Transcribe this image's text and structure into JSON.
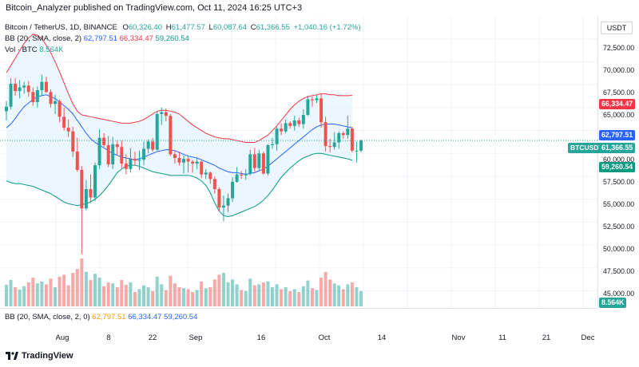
{
  "header": {
    "publisher_line": "Bitcoin_Analyzer published on TradingView.com, Oct 11, 2024 16:25 UTC+3"
  },
  "legend": {
    "symbol": "Bitcoin / TetherUS, 1D, BINANCE",
    "o_label": "O",
    "o_value": "60,326.40",
    "h_label": "H",
    "h_value": "61,477.57",
    "l_label": "L",
    "l_value": "60,087.64",
    "c_label": "C",
    "c_value": "61,366.55",
    "change": "+1,040.16 (+1.72%)",
    "bb_label": "BB (20, SMA, close, 2)",
    "bb_basis": "62,797.51",
    "bb_upper": "66,334.47",
    "bb_lower": "59,260.54",
    "vol_label": "Vol · BTC",
    "vol_value": "8.564K",
    "bottom_bb_label": "BB (20, SMA, close, 2, 0)",
    "bottom_bb_basis": "62,797.51",
    "bottom_bb_upper": "66,334.47",
    "bottom_bb_lower": "59,260.54"
  },
  "price_axis": {
    "currency": "USDT",
    "ticks": [
      "72,500.00",
      "70,000.00",
      "67,500.00",
      "65,000.00",
      "60,000.00",
      "57,500.00",
      "55,000.00",
      "52,500.00",
      "50,000.00",
      "47,500.00",
      "45,000.00"
    ],
    "tags": {
      "upper": "66,334.47",
      "basis": "62,797.51",
      "symbol": "BTCUSDT",
      "last": "61,366.55",
      "lower": "59,260.54",
      "volume": "8.564K"
    }
  },
  "time_axis": {
    "labels": [
      "Aug",
      "8",
      "22",
      "Sep",
      "16",
      "Oct",
      "14",
      "Nov",
      "11",
      "21",
      "Dec"
    ]
  },
  "footer": {
    "brand": "TradingView"
  },
  "colors": {
    "up": "#26a69a",
    "down": "#ef5350",
    "basis": "#2962ff",
    "upper": "#f23645",
    "lower": "#089981",
    "band_fill": "#e3f2fd"
  },
  "chart_data": {
    "type": "candlestick",
    "ylim": [
      44000,
      75000
    ],
    "candles": [
      {
        "o": 64600,
        "h": 65700,
        "l": 63600,
        "c": 65100
      },
      {
        "o": 65100,
        "h": 68200,
        "l": 64800,
        "c": 67600
      },
      {
        "o": 67600,
        "h": 68200,
        "l": 66300,
        "c": 66800
      },
      {
        "o": 66800,
        "h": 68000,
        "l": 66000,
        "c": 67200
      },
      {
        "o": 67200,
        "h": 67800,
        "l": 66500,
        "c": 67400
      },
      {
        "o": 67400,
        "h": 67900,
        "l": 66200,
        "c": 66700
      },
      {
        "o": 66700,
        "h": 67200,
        "l": 65200,
        "c": 65600
      },
      {
        "o": 65600,
        "h": 67300,
        "l": 65000,
        "c": 66900
      },
      {
        "o": 66900,
        "h": 68600,
        "l": 66300,
        "c": 67800
      },
      {
        "o": 67800,
        "h": 68400,
        "l": 66600,
        "c": 66700
      },
      {
        "o": 66700,
        "h": 67000,
        "l": 65000,
        "c": 65400
      },
      {
        "o": 65400,
        "h": 66400,
        "l": 64300,
        "c": 65700
      },
      {
        "o": 65700,
        "h": 65900,
        "l": 63400,
        "c": 64000
      },
      {
        "o": 64000,
        "h": 65000,
        "l": 62500,
        "c": 62800
      },
      {
        "o": 62800,
        "h": 63700,
        "l": 61800,
        "c": 62400
      },
      {
        "o": 62400,
        "h": 62900,
        "l": 59600,
        "c": 60200
      },
      {
        "o": 60200,
        "h": 61700,
        "l": 58000,
        "c": 58200
      },
      {
        "o": 58200,
        "h": 58600,
        "l": 49000,
        "c": 54000
      },
      {
        "o": 54000,
        "h": 57100,
        "l": 53800,
        "c": 56100
      },
      {
        "o": 56100,
        "h": 57700,
        "l": 54600,
        "c": 55200
      },
      {
        "o": 55200,
        "h": 59000,
        "l": 54800,
        "c": 58700
      },
      {
        "o": 58700,
        "h": 62600,
        "l": 58300,
        "c": 61700
      },
      {
        "o": 61700,
        "h": 62200,
        "l": 60700,
        "c": 60900
      },
      {
        "o": 60900,
        "h": 61900,
        "l": 58500,
        "c": 58800
      },
      {
        "o": 58800,
        "h": 61800,
        "l": 58300,
        "c": 61000
      },
      {
        "o": 61000,
        "h": 61400,
        "l": 59800,
        "c": 60700
      },
      {
        "o": 60700,
        "h": 61400,
        "l": 58400,
        "c": 58900
      },
      {
        "o": 58900,
        "h": 59900,
        "l": 57700,
        "c": 58300
      },
      {
        "o": 58300,
        "h": 60600,
        "l": 57900,
        "c": 59400
      },
      {
        "o": 59400,
        "h": 60200,
        "l": 58700,
        "c": 59200
      },
      {
        "o": 59200,
        "h": 60300,
        "l": 58200,
        "c": 59300
      },
      {
        "o": 59300,
        "h": 61300,
        "l": 58700,
        "c": 60500
      },
      {
        "o": 60500,
        "h": 61500,
        "l": 60000,
        "c": 61300
      },
      {
        "o": 61300,
        "h": 61700,
        "l": 60200,
        "c": 60400
      },
      {
        "o": 60400,
        "h": 64600,
        "l": 60300,
        "c": 64300
      },
      {
        "o": 64300,
        "h": 65000,
        "l": 63100,
        "c": 64500
      },
      {
        "o": 64500,
        "h": 64900,
        "l": 63500,
        "c": 64100
      },
      {
        "o": 64100,
        "h": 64300,
        "l": 59700,
        "c": 59900
      },
      {
        "o": 59900,
        "h": 60300,
        "l": 58900,
        "c": 59500
      },
      {
        "o": 59500,
        "h": 60200,
        "l": 58700,
        "c": 59000
      },
      {
        "o": 59000,
        "h": 59800,
        "l": 57800,
        "c": 59400
      },
      {
        "o": 59400,
        "h": 59800,
        "l": 57900,
        "c": 59100
      },
      {
        "o": 59100,
        "h": 59300,
        "l": 57900,
        "c": 58900
      },
      {
        "o": 58900,
        "h": 59500,
        "l": 58300,
        "c": 59100
      },
      {
        "o": 59100,
        "h": 59200,
        "l": 57300,
        "c": 57700
      },
      {
        "o": 57700,
        "h": 58300,
        "l": 57200,
        "c": 57900
      },
      {
        "o": 57900,
        "h": 58000,
        "l": 56700,
        "c": 57200
      },
      {
        "o": 57200,
        "h": 57500,
        "l": 55600,
        "c": 56100
      },
      {
        "o": 56100,
        "h": 56300,
        "l": 53700,
        "c": 54100
      },
      {
        "o": 54100,
        "h": 55400,
        "l": 52600,
        "c": 54300
      },
      {
        "o": 54300,
        "h": 55600,
        "l": 53600,
        "c": 55100
      },
      {
        "o": 55100,
        "h": 57400,
        "l": 54700,
        "c": 56900
      },
      {
        "o": 56900,
        "h": 58500,
        "l": 56800,
        "c": 57700
      },
      {
        "o": 57700,
        "h": 58100,
        "l": 57200,
        "c": 57600
      },
      {
        "o": 57600,
        "h": 58300,
        "l": 57100,
        "c": 57800
      },
      {
        "o": 57800,
        "h": 60400,
        "l": 57600,
        "c": 59900
      },
      {
        "o": 59900,
        "h": 60600,
        "l": 58000,
        "c": 58400
      },
      {
        "o": 58400,
        "h": 60400,
        "l": 58200,
        "c": 60000
      },
      {
        "o": 60000,
        "h": 60200,
        "l": 57700,
        "c": 57800
      },
      {
        "o": 57800,
        "h": 61000,
        "l": 57600,
        "c": 60900
      },
      {
        "o": 60900,
        "h": 61700,
        "l": 60500,
        "c": 61000
      },
      {
        "o": 61000,
        "h": 62900,
        "l": 60300,
        "c": 62700
      },
      {
        "o": 62700,
        "h": 63300,
        "l": 62000,
        "c": 62400
      },
      {
        "o": 62400,
        "h": 63700,
        "l": 62200,
        "c": 63300
      },
      {
        "o": 63300,
        "h": 63500,
        "l": 62700,
        "c": 63000
      },
      {
        "o": 63000,
        "h": 64100,
        "l": 62500,
        "c": 63600
      },
      {
        "o": 63600,
        "h": 63900,
        "l": 62900,
        "c": 63200
      },
      {
        "o": 63200,
        "h": 64800,
        "l": 62700,
        "c": 64200
      },
      {
        "o": 64200,
        "h": 66300,
        "l": 64100,
        "c": 65900
      },
      {
        "o": 65900,
        "h": 66200,
        "l": 65100,
        "c": 65800
      },
      {
        "o": 65800,
        "h": 66400,
        "l": 65500,
        "c": 66000
      },
      {
        "o": 66000,
        "h": 66500,
        "l": 62800,
        "c": 63400
      },
      {
        "o": 63400,
        "h": 64000,
        "l": 60200,
        "c": 60800
      },
      {
        "o": 60800,
        "h": 61600,
        "l": 60100,
        "c": 60700
      },
      {
        "o": 60700,
        "h": 62300,
        "l": 60400,
        "c": 61200
      },
      {
        "o": 61200,
        "h": 62400,
        "l": 60500,
        "c": 62200
      },
      {
        "o": 62200,
        "h": 62400,
        "l": 61600,
        "c": 62000
      },
      {
        "o": 62000,
        "h": 64100,
        "l": 61600,
        "c": 62700
      },
      {
        "o": 62700,
        "h": 62900,
        "l": 60100,
        "c": 60300
      },
      {
        "o": 60300,
        "h": 61300,
        "l": 59000,
        "c": 60300
      },
      {
        "o": 60300,
        "h": 61500,
        "l": 60100,
        "c": 61400
      }
    ],
    "volumes": [
      {
        "v": 0.45,
        "up": true
      },
      {
        "v": 0.55,
        "up": true
      },
      {
        "v": 0.4,
        "up": false
      },
      {
        "v": 0.35,
        "up": true
      },
      {
        "v": 0.42,
        "up": true
      },
      {
        "v": 0.5,
        "up": false
      },
      {
        "v": 0.6,
        "up": false
      },
      {
        "v": 0.48,
        "up": true
      },
      {
        "v": 0.52,
        "up": true
      },
      {
        "v": 0.46,
        "up": false
      },
      {
        "v": 0.58,
        "up": false
      },
      {
        "v": 0.4,
        "up": true
      },
      {
        "v": 0.62,
        "up": false
      },
      {
        "v": 0.66,
        "up": false
      },
      {
        "v": 0.44,
        "up": false
      },
      {
        "v": 0.7,
        "up": false
      },
      {
        "v": 0.78,
        "up": false
      },
      {
        "v": 1.0,
        "up": false
      },
      {
        "v": 0.72,
        "up": true
      },
      {
        "v": 0.55,
        "up": false
      },
      {
        "v": 0.68,
        "up": true
      },
      {
        "v": 0.6,
        "up": true
      },
      {
        "v": 0.42,
        "up": false
      },
      {
        "v": 0.5,
        "up": false
      },
      {
        "v": 0.48,
        "up": true
      },
      {
        "v": 0.4,
        "up": false
      },
      {
        "v": 0.55,
        "up": false
      },
      {
        "v": 0.45,
        "up": false
      },
      {
        "v": 0.5,
        "up": true
      },
      {
        "v": 0.3,
        "up": false
      },
      {
        "v": 0.36,
        "up": true
      },
      {
        "v": 0.44,
        "up": true
      },
      {
        "v": 0.4,
        "up": true
      },
      {
        "v": 0.32,
        "up": false
      },
      {
        "v": 0.62,
        "up": true
      },
      {
        "v": 0.46,
        "up": true
      },
      {
        "v": 0.34,
        "up": false
      },
      {
        "v": 0.64,
        "up": false
      },
      {
        "v": 0.48,
        "up": false
      },
      {
        "v": 0.4,
        "up": false
      },
      {
        "v": 0.38,
        "up": true
      },
      {
        "v": 0.36,
        "up": false
      },
      {
        "v": 0.3,
        "up": false
      },
      {
        "v": 0.34,
        "up": true
      },
      {
        "v": 0.52,
        "up": false
      },
      {
        "v": 0.38,
        "up": true
      },
      {
        "v": 0.4,
        "up": false
      },
      {
        "v": 0.56,
        "up": false
      },
      {
        "v": 0.66,
        "up": false
      },
      {
        "v": 0.7,
        "up": true
      },
      {
        "v": 0.5,
        "up": true
      },
      {
        "v": 0.56,
        "up": true
      },
      {
        "v": 0.46,
        "up": true
      },
      {
        "v": 0.34,
        "up": false
      },
      {
        "v": 0.32,
        "up": true
      },
      {
        "v": 0.58,
        "up": true
      },
      {
        "v": 0.44,
        "up": false
      },
      {
        "v": 0.46,
        "up": true
      },
      {
        "v": 0.5,
        "up": false
      },
      {
        "v": 0.52,
        "up": true
      },
      {
        "v": 0.4,
        "up": true
      },
      {
        "v": 0.46,
        "up": true
      },
      {
        "v": 0.36,
        "up": false
      },
      {
        "v": 0.4,
        "up": true
      },
      {
        "v": 0.32,
        "up": false
      },
      {
        "v": 0.36,
        "up": true
      },
      {
        "v": 0.3,
        "up": false
      },
      {
        "v": 0.42,
        "up": true
      },
      {
        "v": 0.54,
        "up": true
      },
      {
        "v": 0.38,
        "up": false
      },
      {
        "v": 0.34,
        "up": true
      },
      {
        "v": 0.6,
        "up": false
      },
      {
        "v": 0.72,
        "up": false
      },
      {
        "v": 0.56,
        "up": false
      },
      {
        "v": 0.48,
        "up": true
      },
      {
        "v": 0.44,
        "up": true
      },
      {
        "v": 0.36,
        "up": false
      },
      {
        "v": 0.46,
        "up": true
      },
      {
        "v": 0.5,
        "up": false
      },
      {
        "v": 0.4,
        "up": true
      },
      {
        "v": 0.32,
        "up": true
      }
    ],
    "bb_basis": [
      62800,
      63200,
      63800,
      64500,
      65100,
      65500,
      65900,
      66200,
      66300,
      66400,
      66200,
      66000,
      65600,
      65200,
      64800,
      64300,
      63600,
      62900,
      62200,
      61600,
      61200,
      60900,
      60600,
      60300,
      60000,
      59800,
      59600,
      59500,
      59400,
      59300,
      59400,
      59600,
      59800,
      60000,
      60200,
      60300,
      60400,
      60400,
      60300,
      60100,
      59900,
      59700,
      59600,
      59500,
      59300,
      59100,
      58900,
      58700,
      58400,
      58200,
      58000,
      57900,
      57900,
      57800,
      57700,
      57800,
      57900,
      58100,
      58300,
      58600,
      59000,
      59400,
      59800,
      60200,
      60600,
      61000,
      61400,
      61800,
      62200,
      62600,
      62900,
      63100,
      63200,
      63200,
      63200,
      63100,
      63000,
      62900,
      62800
    ],
    "bb_upper": [
      68800,
      69600,
      70400,
      71200,
      72000,
      72600,
      73000,
      72900,
      72500,
      71800,
      71000,
      70000,
      68900,
      67700,
      66500,
      65400,
      64600,
      64200,
      64100,
      64000,
      63900,
      63800,
      63700,
      63600,
      63500,
      63400,
      63300,
      63300,
      63300,
      63400,
      63500,
      63700,
      64000,
      64300,
      64600,
      64700,
      64700,
      64600,
      64500,
      64300,
      63900,
      63500,
      63100,
      62800,
      62500,
      62200,
      62000,
      61800,
      61700,
      61600,
      61600,
      61500,
      61400,
      61300,
      61200,
      61200,
      61200,
      61400,
      61700,
      62000,
      62500,
      63000,
      63600,
      64200,
      64800,
      65300,
      65700,
      66000,
      66200,
      66300,
      66400,
      66500,
      66500,
      66400,
      66400,
      66300,
      66300,
      66300,
      66334
    ],
    "bb_lower": [
      57000,
      56800,
      56700,
      56700,
      56600,
      56500,
      56400,
      56200,
      56000,
      55800,
      55600,
      55300,
      55000,
      54700,
      54500,
      54400,
      54300,
      54400,
      54500,
      54700,
      55000,
      55400,
      55900,
      56500,
      57200,
      57900,
      58300,
      58600,
      58700,
      58700,
      58600,
      58400,
      58200,
      58000,
      57900,
      57800,
      57700,
      57600,
      57600,
      57600,
      57600,
      57600,
      57500,
      57300,
      57000,
      56500,
      55700,
      54600,
      53700,
      53200,
      53100,
      53200,
      53400,
      53600,
      53800,
      54000,
      54200,
      54500,
      54900,
      55400,
      56000,
      56700,
      57400,
      57900,
      58400,
      58800,
      59200,
      59500,
      59700,
      59900,
      60000,
      60000,
      59900,
      59800,
      59700,
      59600,
      59500,
      59400,
      59260
    ]
  }
}
